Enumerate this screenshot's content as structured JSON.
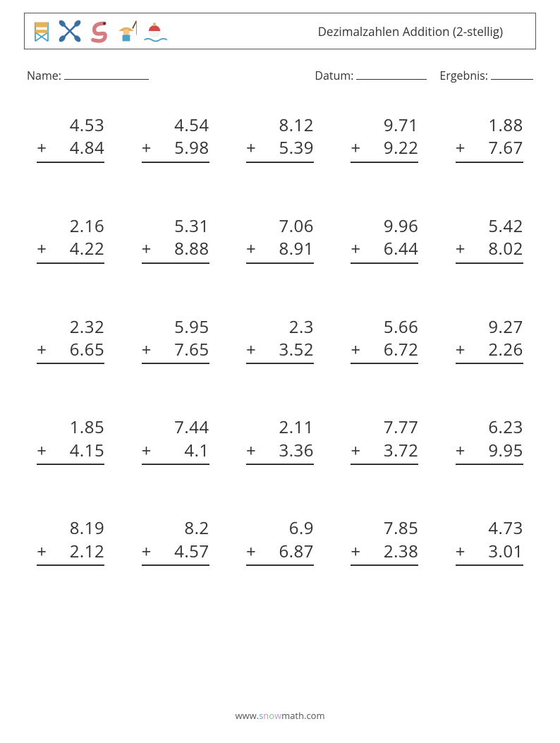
{
  "header": {
    "title": "Dezimalzahlen Addition (2-stellig)",
    "icons": [
      "chair-icon",
      "paddles-icon",
      "worm-icon",
      "fisher-icon",
      "bobber-icon"
    ]
  },
  "meta": {
    "name_label": "Name:",
    "date_label": "Datum:",
    "result_label": "Ergebnis:"
  },
  "style": {
    "page_bg": "#ffffff",
    "text_color": "#333333",
    "border_color": "#555555",
    "font_family": "Open Sans, Segoe UI, Arial, sans-serif",
    "title_fontsize": 17,
    "meta_fontsize": 16,
    "problem_fontsize": 24,
    "underline_width": 2,
    "grid_cols": 5,
    "grid_rows": 5,
    "col_gap": 48,
    "row_gap": 74
  },
  "problems": [
    {
      "a": "4.53",
      "b": "4.84"
    },
    {
      "a": "4.54",
      "b": "5.98"
    },
    {
      "a": "8.12",
      "b": "5.39"
    },
    {
      "a": "9.71",
      "b": "9.22"
    },
    {
      "a": "1.88",
      "b": "7.67"
    },
    {
      "a": "2.16",
      "b": "4.22"
    },
    {
      "a": "5.31",
      "b": "8.88"
    },
    {
      "a": "7.06",
      "b": "8.91"
    },
    {
      "a": "9.96",
      "b": "6.44"
    },
    {
      "a": "5.42",
      "b": "8.02"
    },
    {
      "a": "2.32",
      "b": "6.65"
    },
    {
      "a": "5.95",
      "b": "7.65"
    },
    {
      "a": "2.3",
      "b": "3.52"
    },
    {
      "a": "5.66",
      "b": "6.72"
    },
    {
      "a": "9.27",
      "b": "2.26"
    },
    {
      "a": "1.85",
      "b": "4.15"
    },
    {
      "a": "7.44",
      "b": "4.1"
    },
    {
      "a": "2.11",
      "b": "3.36"
    },
    {
      "a": "7.77",
      "b": "3.72"
    },
    {
      "a": "6.23",
      "b": "9.95"
    },
    {
      "a": "8.19",
      "b": "2.12"
    },
    {
      "a": "8.2",
      "b": "4.57"
    },
    {
      "a": "6.9",
      "b": "6.87"
    },
    {
      "a": "7.85",
      "b": "2.38"
    },
    {
      "a": "4.73",
      "b": "3.01"
    }
  ],
  "operator": "+",
  "footer": {
    "prefix": "www.",
    "s": "s",
    "n": "n",
    "o": "o",
    "w": "w",
    "rest": "math.com"
  }
}
